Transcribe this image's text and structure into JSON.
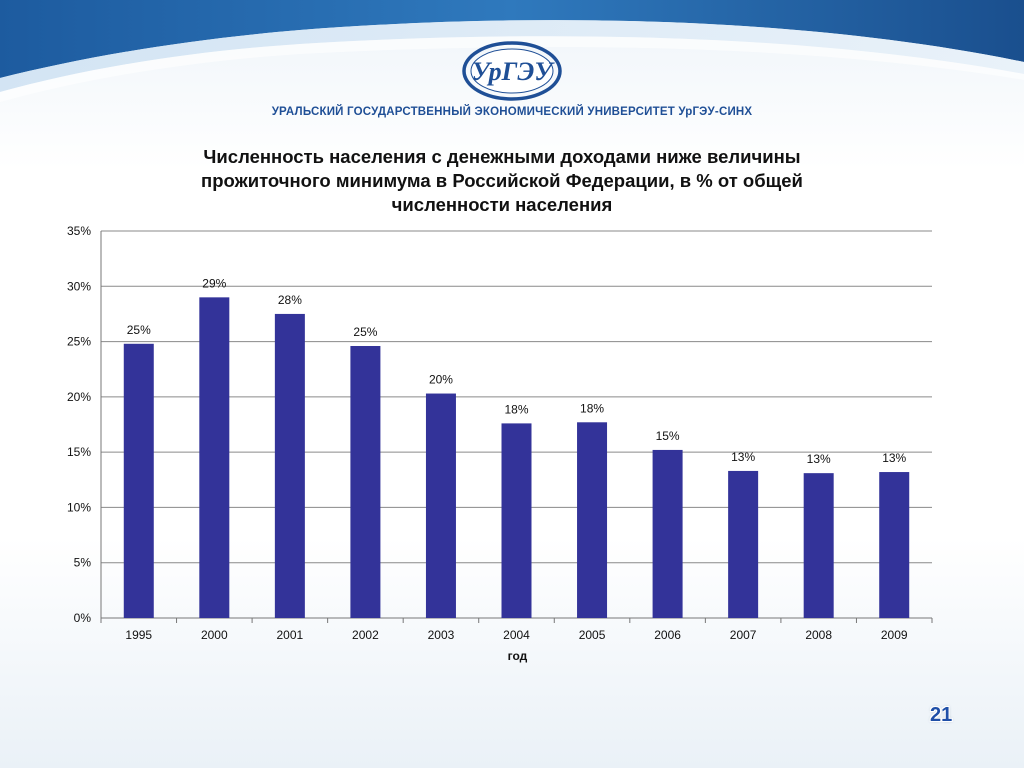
{
  "header": {
    "logo_text": "УрГЭУ",
    "university_name": "УРАЛЬСКИЙ ГОСУДАРСТВЕННЫЙ ЭКОНОМИЧЕСКИЙ УНИВЕРСИТЕТ УрГЭУ-СИНХ"
  },
  "colors": {
    "bar": "#333399",
    "brand": "#1f4f96",
    "page_number": "#1f4fa8"
  },
  "chart_data": {
    "type": "bar",
    "title": "Численность населения с денежными доходами ниже величины прожиточного минимума в Российской Федерации, в % от общей численности населения",
    "title_lines": [
      "Численность населения с денежными доходами ниже величины",
      "прожиточного минимума в Российской Федерации, в % от общей",
      "численности населения"
    ],
    "xlabel": "год",
    "ylabel": "",
    "categories": [
      "1995",
      "2000",
      "2001",
      "2002",
      "2003",
      "2004",
      "2005",
      "2006",
      "2007",
      "2008",
      "2009"
    ],
    "values": [
      24.8,
      29.0,
      27.5,
      24.6,
      20.3,
      17.6,
      17.7,
      15.2,
      13.3,
      13.1,
      13.2
    ],
    "data_labels": [
      "25%",
      "29%",
      "28%",
      "25%",
      "20%",
      "18%",
      "18%",
      "15%",
      "13%",
      "13%",
      "13%"
    ],
    "ylim": [
      0,
      35
    ],
    "yticks": [
      0,
      5,
      10,
      15,
      20,
      25,
      30,
      35
    ],
    "ytick_labels": [
      "0%",
      "5%",
      "10%",
      "15%",
      "20%",
      "25%",
      "30%",
      "35%"
    ],
    "grid": true,
    "legend": "none"
  },
  "footer": {
    "page_number": "21"
  }
}
